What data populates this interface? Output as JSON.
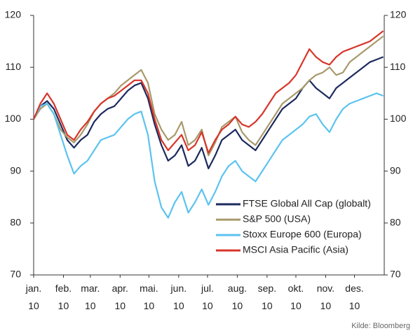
{
  "chart_data": {
    "type": "line",
    "x": [
      0,
      7,
      14,
      21,
      28,
      35,
      42,
      49,
      56,
      63,
      70,
      77,
      84,
      91,
      98,
      105,
      112,
      119,
      126,
      133,
      140,
      147,
      154,
      161,
      168,
      175,
      182,
      189,
      196,
      203,
      210,
      217,
      224,
      231,
      238,
      245,
      252,
      259,
      266,
      273,
      280,
      287,
      294,
      301,
      308,
      315,
      322,
      329,
      336,
      343,
      350,
      357,
      364
    ],
    "xlim": [
      0,
      365
    ],
    "xticks": [
      {
        "value": 0,
        "label": "jan. 10"
      },
      {
        "value": 31,
        "label": "feb. 10"
      },
      {
        "value": 59,
        "label": "mar. 10"
      },
      {
        "value": 90,
        "label": "apr. 10"
      },
      {
        "value": 120,
        "label": "mai. 10"
      },
      {
        "value": 151,
        "label": "jun. 10"
      },
      {
        "value": 181,
        "label": "jul. 10"
      },
      {
        "value": 212,
        "label": "aug. 10"
      },
      {
        "value": 243,
        "label": "sep. 10"
      },
      {
        "value": 273,
        "label": "okt. 10"
      },
      {
        "value": 304,
        "label": "nov. 10"
      },
      {
        "value": 334,
        "label": "des. 10"
      }
    ],
    "ylim": [
      70,
      120
    ],
    "yticks": [
      70,
      80,
      90,
      100,
      110,
      120
    ],
    "y2lim": [
      70,
      120
    ],
    "y2ticks": [
      70,
      80,
      90,
      100,
      110,
      120
    ],
    "grid": false,
    "legend": "lower right",
    "source": "Kilde: Bloomberg",
    "series": [
      {
        "name": "FTSE Global All Cap (globalt)",
        "color": "#1c2a5e",
        "values": [
          100,
          102.5,
          103.5,
          102,
          99,
          96,
          94.5,
          96,
          97,
          99.5,
          101,
          102,
          102.5,
          104,
          105.5,
          106.5,
          107,
          104,
          99,
          95,
          92,
          93,
          95,
          91,
          92,
          94.5,
          90.5,
          93,
          96,
          97,
          98,
          96,
          95,
          94,
          96,
          98,
          100,
          102,
          103,
          104,
          106,
          107.5,
          106,
          105,
          104,
          106,
          107,
          108,
          109,
          110,
          111,
          111.5,
          112
        ]
      },
      {
        "name": "S&P 500 (USA)",
        "color": "#a8996b",
        "values": [
          100,
          102,
          103,
          101,
          98,
          96.5,
          95.5,
          97,
          99,
          101.5,
          103,
          104,
          105,
          106.5,
          107.5,
          108.5,
          109.5,
          107,
          101,
          98,
          96,
          97,
          99.5,
          95,
          96,
          98,
          93,
          95.5,
          98.5,
          99.5,
          100.5,
          97.5,
          96,
          95,
          97,
          99,
          101,
          103,
          104,
          105,
          106,
          107.5,
          108.5,
          109,
          110,
          108.5,
          109,
          111,
          112,
          113,
          114,
          115,
          116
        ]
      },
      {
        "name": "Stoxx Europe 600 (Europa)",
        "color": "#5cc3ef",
        "values": [
          100,
          102.5,
          103,
          101,
          97,
          93,
          89.5,
          91,
          92,
          94,
          96,
          96.5,
          97,
          98.5,
          100,
          101,
          101.5,
          97,
          88,
          83,
          81,
          84,
          86,
          82,
          84,
          86.5,
          83.5,
          86,
          89,
          91,
          92,
          90,
          89,
          88,
          90,
          92,
          94,
          96,
          97,
          98,
          99,
          100.5,
          101,
          99,
          97.5,
          100,
          102,
          103,
          103.5,
          104,
          104.5,
          105,
          104.5
        ]
      },
      {
        "name": "MSCI Asia Pacific (Asia)",
        "color": "#d7352a",
        "values": [
          100,
          103,
          105,
          103,
          100,
          97,
          96,
          98,
          99.5,
          101.5,
          103,
          104,
          104.5,
          105.5,
          106.5,
          107.5,
          107.5,
          105,
          100,
          96,
          94,
          95.5,
          97,
          94,
          95,
          97.5,
          93.5,
          96,
          98,
          99,
          100.5,
          99,
          98.5,
          99.5,
          101,
          103,
          105,
          106,
          107,
          108.5,
          111,
          113.5,
          112,
          111,
          110.5,
          112,
          113,
          113.5,
          114,
          114.5,
          115,
          116,
          117
        ]
      }
    ]
  }
}
